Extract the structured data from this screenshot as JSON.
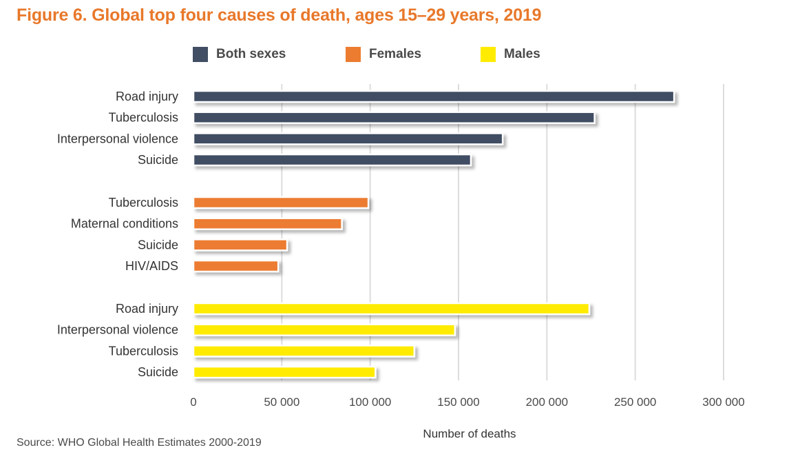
{
  "chart_data": {
    "type": "bar",
    "orientation": "horizontal",
    "title": "Figure 6. Global top four causes of death, ages 15–29 years, 2019",
    "xlabel": "Number of deaths",
    "xlim": [
      0,
      300000
    ],
    "x_ticks": [
      0,
      50000,
      100000,
      150000,
      200000,
      250000,
      300000
    ],
    "x_tick_labels": [
      "0",
      "50 000",
      "100 000",
      "150 000",
      "200 000",
      "250 000",
      "300 000"
    ],
    "grid": true,
    "legend_position": "top",
    "series": [
      {
        "name": "Both sexes",
        "color": "#414e63",
        "categories": [
          "Road injury",
          "Tuberculosis",
          "Interpersonal violence",
          "Suicide"
        ],
        "values": [
          272000,
          227000,
          175000,
          157000
        ]
      },
      {
        "name": "Females",
        "color": "#ec7c30",
        "categories": [
          "Tuberculosis",
          "Maternal conditions",
          "Suicide",
          "HIV/AIDS"
        ],
        "values": [
          99000,
          84000,
          53000,
          48000
        ]
      },
      {
        "name": "Males",
        "color": "#ffeb00",
        "categories": [
          "Road injury",
          "Interpersonal violence",
          "Tuberculosis",
          "Suicide"
        ],
        "values": [
          224000,
          148000,
          125000,
          103000
        ]
      }
    ]
  },
  "source": "Source: WHO Global Health Estimates 2000-2019"
}
